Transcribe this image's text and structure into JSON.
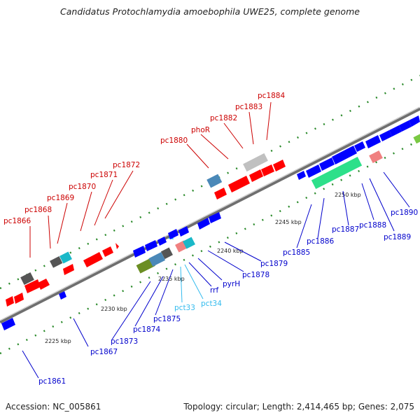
{
  "title": "Candidatus Protochlamydia amoebophila UWE25, complete genome",
  "accession_text": "Accession: NC_005861",
  "topology_text": "Topology: circular; Length: 2,414,465 bp; Genes: 2,075",
  "colors": {
    "backbone": "#8a8a8a",
    "tick": "#2a8a2a",
    "forward_gene": "#ff0000",
    "reverse_gene": "#0000ff",
    "rna_gene": "#33ccff",
    "forward_label": "#cc0000",
    "reverse_label": "#0000cc",
    "rna_label": "#33bbee"
  },
  "ticks": [
    "2225 kbp",
    "2230 kbp",
    "2235 kbp",
    "2240 kbp",
    "2245 kbp",
    "2250 kbp"
  ],
  "forward_labels": [
    "pc1866",
    "pc1868",
    "pc1869",
    "pc1870",
    "pc1871",
    "pc1872",
    "pc1880",
    "phoR",
    "pc1882",
    "pc1883",
    "pc1884"
  ],
  "reverse_labels": [
    "pc1861",
    "pc1867",
    "pc1873",
    "pc1874",
    "pc1875",
    "rrf",
    "pyrH",
    "pc1878",
    "pc1879",
    "pc1885",
    "pc1886",
    "pc1887",
    "pc1888",
    "pc1889",
    "pc1890"
  ],
  "rna_labels": [
    "pct33",
    "pct34"
  ]
}
